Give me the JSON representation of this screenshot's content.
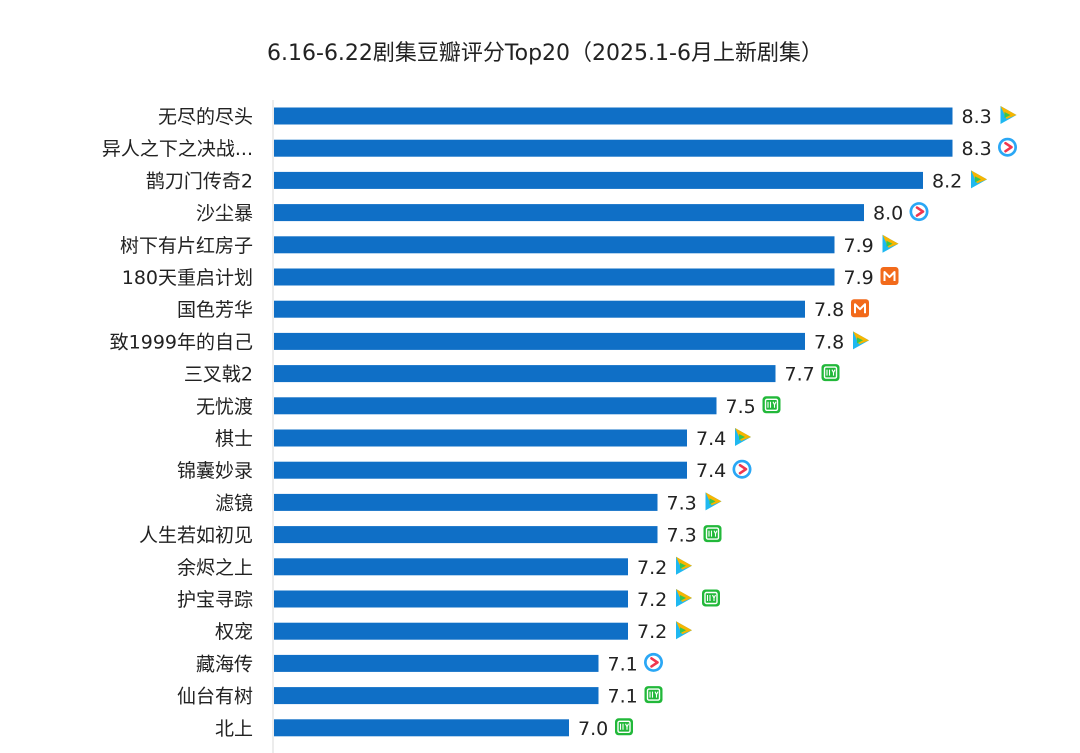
{
  "chart_data": {
    "type": "bar",
    "orientation": "horizontal",
    "title": "6.16-6.22剧集豆瓣评分Top20（2025.1-6月上新剧集）",
    "xlabel": "",
    "ylabel": "",
    "xlim": [
      6.0,
      8.5
    ],
    "grid": false,
    "legend": "none",
    "bar_color": "#0f6fc6",
    "categories": [
      "无尽的尽头",
      "异人之下之决战...",
      "鹊刀门传奇2",
      "沙尘暴",
      "树下有片红房子",
      "180天重启计划",
      "国色芳华",
      "致1999年的自己",
      "三叉戟2",
      "无忧渡",
      "棋士",
      "锦囊妙录",
      "滤镜",
      "人生若如初见",
      "余烬之上",
      "护宝寻踪",
      "权宠",
      "藏海传",
      "仙台有树",
      "北上"
    ],
    "values": [
      8.3,
      8.3,
      8.2,
      8.0,
      7.9,
      7.9,
      7.8,
      7.8,
      7.7,
      7.5,
      7.4,
      7.4,
      7.3,
      7.3,
      7.2,
      7.2,
      7.2,
      7.1,
      7.1,
      7.0
    ],
    "value_labels": [
      "8.3",
      "8.3",
      "8.2",
      "8.0",
      "7.9",
      "7.9",
      "7.8",
      "7.8",
      "7.7",
      "7.5",
      "7.4",
      "7.4",
      "7.3",
      "7.3",
      "7.2",
      "7.2",
      "7.2",
      "7.1",
      "7.1",
      "7.0"
    ],
    "platforms": [
      [
        "tencent-video"
      ],
      [
        "youku"
      ],
      [
        "tencent-video"
      ],
      [
        "youku"
      ],
      [
        "tencent-video"
      ],
      [
        "mango-tv"
      ],
      [
        "mango-tv"
      ],
      [
        "tencent-video"
      ],
      [
        "iqiyi"
      ],
      [
        "iqiyi"
      ],
      [
        "tencent-video"
      ],
      [
        "youku"
      ],
      [
        "tencent-video"
      ],
      [
        "iqiyi"
      ],
      [
        "tencent-video"
      ],
      [
        "tencent-video",
        "iqiyi"
      ],
      [
        "tencent-video"
      ],
      [
        "youku"
      ],
      [
        "iqiyi"
      ],
      [
        "iqiyi"
      ]
    ],
    "platform_colors": {
      "tencent-video": [
        "#1fb8f0",
        "#f7b500",
        "#37c64f"
      ],
      "youku": [
        "#2aa7f5",
        "#ffffff",
        "#f0364f"
      ],
      "mango-tv": [
        "#f26a1b",
        "#ffffff"
      ],
      "iqiyi": [
        "#22b83a",
        "#ffffff"
      ]
    }
  }
}
